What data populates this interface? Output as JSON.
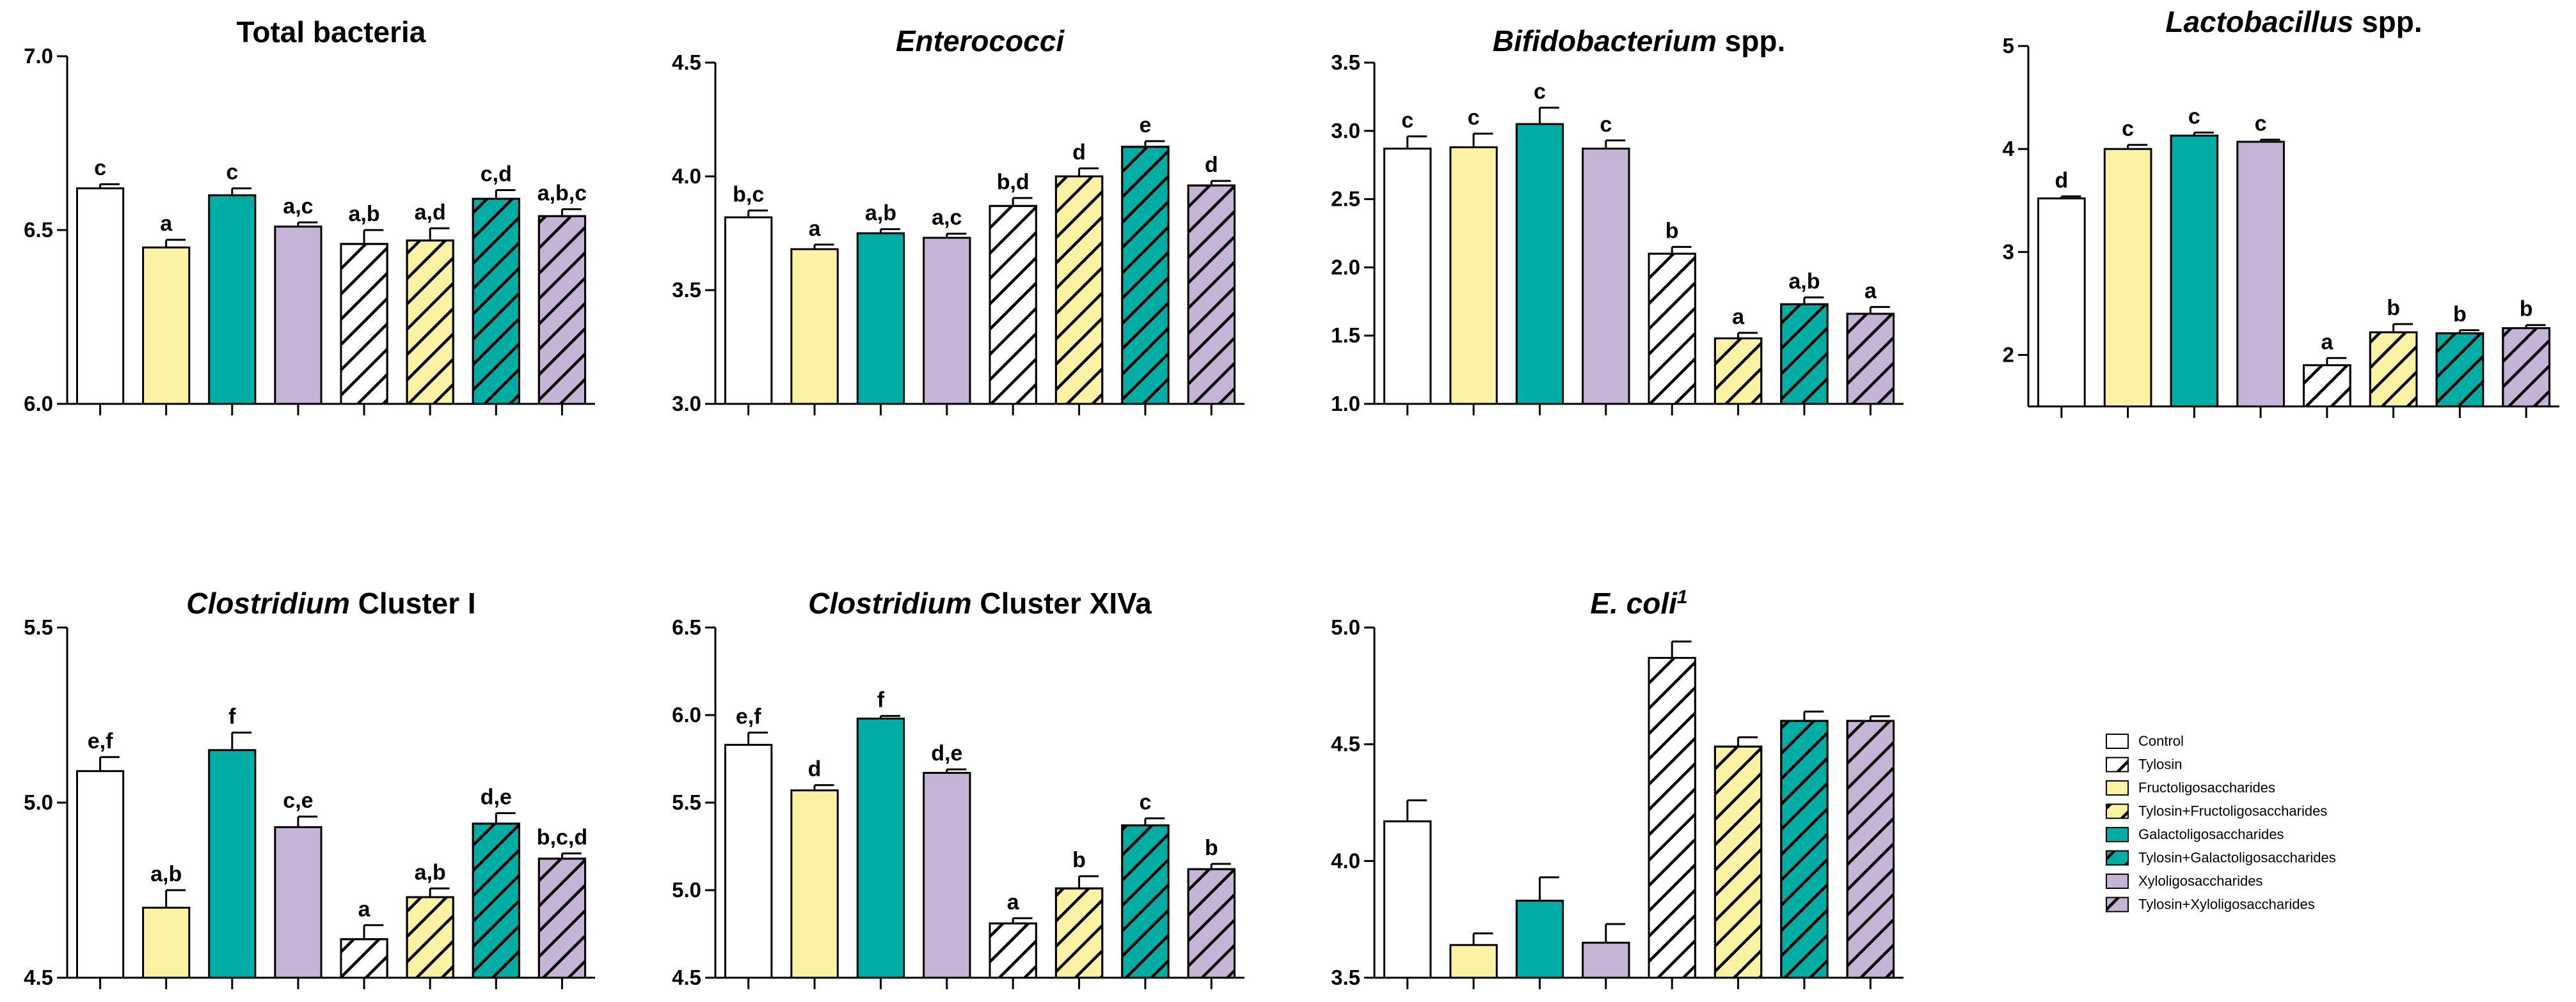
{
  "figure": {
    "colors": {
      "control": "#ffffff",
      "fructo": "#fcf2a4",
      "galacto": "#00ada5",
      "xylo": "#c5b4d5",
      "stroke": "#000000"
    }
  },
  "legend": {
    "items": [
      {
        "label": "Control",
        "color": "#ffffff",
        "hatch": false
      },
      {
        "label": "Tylosin",
        "color": "#ffffff",
        "hatch": true
      },
      {
        "label": "Fructoligosaccharides",
        "color": "#fcf2a4",
        "hatch": false
      },
      {
        "label": "Tylosin+Fructoligosaccharides",
        "color": "#fcf2a4",
        "hatch": true
      },
      {
        "label": "Galactoligosaccharides",
        "color": "#00ada5",
        "hatch": false
      },
      {
        "label": "Tylosin+Galactoligosaccharides",
        "color": "#00ada5",
        "hatch": true
      },
      {
        "label": "Xyloligosaccharides",
        "color": "#c5b4d5",
        "hatch": false
      },
      {
        "label": "Tylosin+Xyloligosaccharides",
        "color": "#c5b4d5",
        "hatch": true
      }
    ]
  },
  "chart_data": [
    {
      "type": "bar",
      "title": "Total bacteria",
      "title_parts": [
        {
          "text": "Total bacteria",
          "italic": false
        }
      ],
      "ylim": [
        6.0,
        7.0
      ],
      "yticks": [
        "6.0",
        "6.5",
        "7.0"
      ],
      "values": [
        6.62,
        6.45,
        6.6,
        6.51,
        6.46,
        6.47,
        6.59,
        6.54
      ],
      "errors": [
        0.012,
        0.022,
        0.02,
        0.012,
        0.04,
        0.035,
        0.025,
        0.02
      ],
      "letters": [
        "c",
        "a",
        "c",
        "a,c",
        "a,b",
        "a,d",
        "c,d",
        "a,b,c"
      ],
      "bar_colors": [
        "#ffffff",
        "#fcf2a4",
        "#00ada5",
        "#c5b4d5",
        "#ffffff",
        "#fcf2a4",
        "#00ada5",
        "#c5b4d5"
      ],
      "hatched": [
        false,
        false,
        false,
        false,
        true,
        true,
        true,
        true
      ]
    },
    {
      "type": "bar",
      "title": "Enterococci",
      "title_parts": [
        {
          "text": "Enterococci",
          "italic": true
        }
      ],
      "ylim": [
        3.0,
        4.5
      ],
      "yticks": [
        "3.0",
        "3.5",
        "4.0",
        "4.5"
      ],
      "values": [
        3.82,
        3.68,
        3.75,
        3.73,
        3.87,
        4.0,
        4.13,
        3.96
      ],
      "errors": [
        0.03,
        0.02,
        0.018,
        0.018,
        0.035,
        0.035,
        0.025,
        0.02
      ],
      "letters": [
        "b,c",
        "a",
        "a,b",
        "a,c",
        "b,d",
        "d",
        "e",
        "d"
      ],
      "bar_colors": [
        "#ffffff",
        "#fcf2a4",
        "#00ada5",
        "#c5b4d5",
        "#ffffff",
        "#fcf2a4",
        "#00ada5",
        "#c5b4d5"
      ],
      "hatched": [
        false,
        false,
        false,
        false,
        true,
        true,
        true,
        true
      ]
    },
    {
      "type": "bar",
      "title": "Bifidobacterium spp.",
      "title_parts": [
        {
          "text": "Bifidobacterium",
          "italic": true
        },
        {
          "text": " spp.",
          "italic": false
        }
      ],
      "ylim": [
        1.0,
        3.5
      ],
      "yticks": [
        "1.0",
        "1.5",
        "2.0",
        "2.5",
        "3.0",
        "3.5"
      ],
      "values": [
        2.87,
        2.88,
        3.05,
        2.87,
        2.1,
        1.48,
        1.73,
        1.66
      ],
      "errors": [
        0.09,
        0.1,
        0.12,
        0.06,
        0.05,
        0.04,
        0.05,
        0.05
      ],
      "letters": [
        "c",
        "c",
        "c",
        "c",
        "b",
        "a",
        "a,b",
        "a"
      ],
      "bar_colors": [
        "#ffffff",
        "#fcf2a4",
        "#00ada5",
        "#c5b4d5",
        "#ffffff",
        "#fcf2a4",
        "#00ada5",
        "#c5b4d5"
      ],
      "hatched": [
        false,
        false,
        false,
        false,
        true,
        true,
        true,
        true
      ]
    },
    {
      "type": "bar",
      "title": "Lactobacillus spp.",
      "title_parts": [
        {
          "text": "Lactobacillus",
          "italic": true
        },
        {
          "text": " spp.",
          "italic": false
        }
      ],
      "ylim": [
        1.5,
        5.0
      ],
      "yticks": [
        "2",
        "3",
        "4",
        "5"
      ],
      "ytick_values": [
        2,
        3,
        4,
        5
      ],
      "values": [
        3.52,
        4.0,
        4.13,
        4.07,
        1.9,
        2.22,
        2.21,
        2.26
      ],
      "errors": [
        0.02,
        0.04,
        0.03,
        0.02,
        0.07,
        0.08,
        0.03,
        0.03
      ],
      "letters": [
        "d",
        "c",
        "c",
        "c",
        "a",
        "b",
        "b",
        "b"
      ],
      "bar_colors": [
        "#ffffff",
        "#fcf2a4",
        "#00ada5",
        "#c5b4d5",
        "#ffffff",
        "#fcf2a4",
        "#00ada5",
        "#c5b4d5"
      ],
      "hatched": [
        false,
        false,
        false,
        false,
        true,
        true,
        true,
        true
      ]
    },
    {
      "type": "bar",
      "title": "Clostridium Cluster I",
      "title_parts": [
        {
          "text": "Clostridium",
          "italic": true
        },
        {
          "text": " Cluster I",
          "italic": false
        }
      ],
      "ylim": [
        4.5,
        5.5
      ],
      "yticks": [
        "4.5",
        "5.0",
        "5.5"
      ],
      "values": [
        5.09,
        4.7,
        5.15,
        4.93,
        4.61,
        4.73,
        4.94,
        4.84
      ],
      "errors": [
        0.04,
        0.05,
        0.05,
        0.03,
        0.04,
        0.025,
        0.03,
        0.015
      ],
      "letters": [
        "e,f",
        "a,b",
        "f",
        "c,e",
        "a",
        "a,b",
        "d,e",
        "b,c,d"
      ],
      "bar_colors": [
        "#ffffff",
        "#fcf2a4",
        "#00ada5",
        "#c5b4d5",
        "#ffffff",
        "#fcf2a4",
        "#00ada5",
        "#c5b4d5"
      ],
      "hatched": [
        false,
        false,
        false,
        false,
        true,
        true,
        true,
        true
      ]
    },
    {
      "type": "bar",
      "title": "Clostridium Cluster XIVa",
      "title_parts": [
        {
          "text": "Clostridium",
          "italic": true
        },
        {
          "text": " Cluster XIVa",
          "italic": false
        }
      ],
      "ylim": [
        4.5,
        6.5
      ],
      "yticks": [
        "4.5",
        "5.0",
        "5.5",
        "6.0",
        "6.5"
      ],
      "values": [
        5.83,
        5.57,
        5.98,
        5.67,
        4.81,
        5.01,
        5.37,
        5.12
      ],
      "errors": [
        0.07,
        0.03,
        0.015,
        0.02,
        0.03,
        0.07,
        0.04,
        0.03
      ],
      "letters": [
        "e,f",
        "d",
        "f",
        "d,e",
        "a",
        "b",
        "c",
        "b"
      ],
      "bar_colors": [
        "#ffffff",
        "#fcf2a4",
        "#00ada5",
        "#c5b4d5",
        "#ffffff",
        "#fcf2a4",
        "#00ada5",
        "#c5b4d5"
      ],
      "hatched": [
        false,
        false,
        false,
        false,
        true,
        true,
        true,
        true
      ]
    },
    {
      "type": "bar",
      "title": "E. coli1",
      "title_parts": [
        {
          "text": "E. coli",
          "italic": true
        },
        {
          "text": "1",
          "italic": true,
          "superscript": true
        }
      ],
      "ylim": [
        3.5,
        5.0
      ],
      "yticks": [
        "3.5",
        "4.0",
        "4.5",
        "5.0"
      ],
      "values": [
        4.17,
        3.64,
        3.83,
        3.65,
        4.87,
        4.49,
        4.6,
        4.6
      ],
      "errors": [
        0.09,
        0.05,
        0.1,
        0.08,
        0.07,
        0.04,
        0.04,
        0.02
      ],
      "letters": [
        "",
        "",
        "",
        "",
        "",
        "",
        "",
        ""
      ],
      "bar_colors": [
        "#ffffff",
        "#fcf2a4",
        "#00ada5",
        "#c5b4d5",
        "#ffffff",
        "#fcf2a4",
        "#00ada5",
        "#c5b4d5"
      ],
      "hatched": [
        false,
        false,
        false,
        false,
        true,
        true,
        true,
        true
      ]
    }
  ]
}
